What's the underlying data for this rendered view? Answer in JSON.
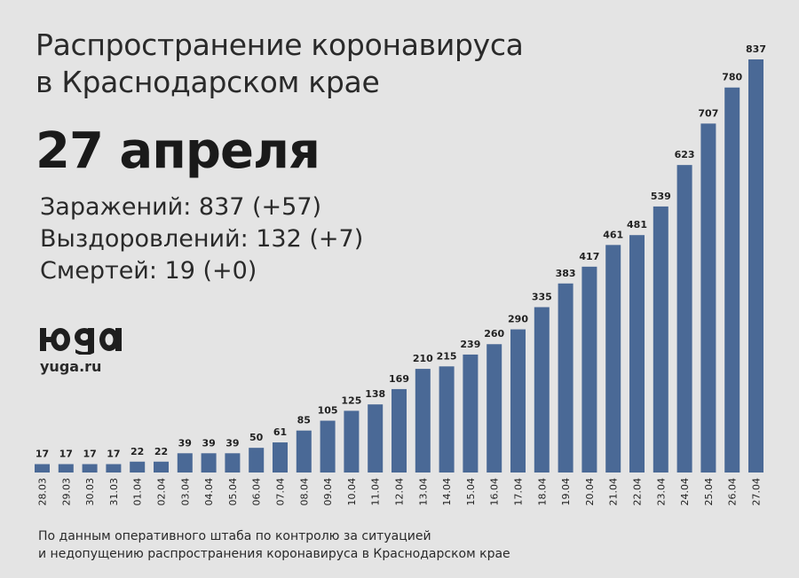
{
  "header": {
    "title_line1": "Распространение коронавируса",
    "title_line2": "в Краснодарском крае",
    "date": "27 апреля"
  },
  "stats": {
    "infected": "Заражений: 837 (+57)",
    "recovered": "Выздоровлений: 132 (+7)",
    "deaths": "Смертей: 19 (+0)"
  },
  "logo": {
    "site": "yuga.ru",
    "wordmark": "ЮГА"
  },
  "footer": {
    "line1": "По данным оперативного штаба по контролю за ситуацией",
    "line2": "и недопущению распространения коронавируса в Краснодарском крае"
  },
  "colors": {
    "background": "#e4e4e4",
    "bar": "#4a6996"
  },
  "chart_data": {
    "type": "bar",
    "categories": [
      "28.03",
      "29.03",
      "30.03",
      "31.03",
      "01.04",
      "02.04",
      "03.04",
      "04.04",
      "05.04",
      "06.04",
      "07.04",
      "08.04",
      "09.04",
      "10.04",
      "11.04",
      "12.04",
      "13.04",
      "14.04",
      "15.04",
      "16.04",
      "17.04",
      "18.04",
      "19.04",
      "20.04",
      "21.04",
      "22.04",
      "23.04",
      "24.04",
      "25.04",
      "26.04",
      "27.04"
    ],
    "values": [
      17,
      17,
      17,
      17,
      22,
      22,
      39,
      39,
      39,
      50,
      61,
      85,
      105,
      125,
      138,
      169,
      210,
      215,
      239,
      260,
      290,
      335,
      383,
      417,
      461,
      481,
      539,
      623,
      707,
      780,
      837
    ],
    "title": "",
    "xlabel": "",
    "ylabel": "",
    "ylim": [
      0,
      837
    ],
    "grid": false,
    "legend": "none"
  }
}
